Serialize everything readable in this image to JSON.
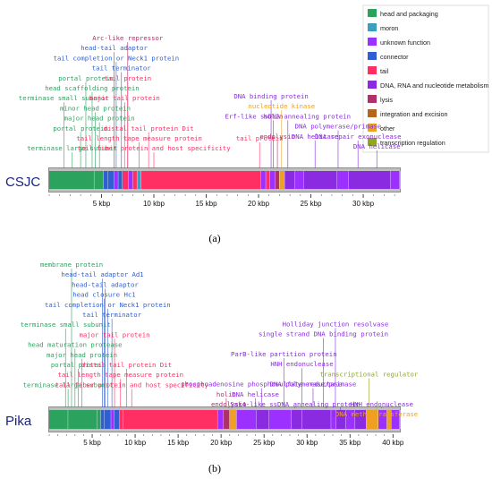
{
  "colors": {
    "head and packaging": "#2ca25f",
    "moron": "#3a9fbf",
    "unknown function": "#9b30ff",
    "connector": "#2f5fd0",
    "tail": "#ff2e63",
    "DNA, RNA and nucleotide metabolism": "#8a2be2",
    "lysis": "#b0306a",
    "integration and excision": "#b5651d",
    "other": "#f0a020",
    "transcription regulation": "#8fa820"
  },
  "legend": [
    {
      "label": "head and packaging",
      "category": "head and packaging"
    },
    {
      "label": "moron",
      "category": "moron"
    },
    {
      "label": "unknown function",
      "category": "unknown function"
    },
    {
      "label": "connector",
      "category": "connector"
    },
    {
      "label": "tail",
      "category": "tail"
    },
    {
      "label": "DNA, RNA and nucleotide metabolism",
      "category": "DNA, RNA and nucleotide metabolism"
    },
    {
      "label": "lysis",
      "category": "lysis"
    },
    {
      "label": "integration and excision",
      "category": "integration and excision"
    },
    {
      "label": "other",
      "category": "other"
    },
    {
      "label": "transcription regulation",
      "category": "transcription regulation"
    }
  ],
  "panels": [
    {
      "genome": "CSJC",
      "name_color": "#1a237e",
      "panel_label": "(a)",
      "ticks": [
        "5 kbp",
        "10 kbp",
        "15 kbp",
        "20 kbp",
        "25 kbp",
        "30 kbp"
      ],
      "tick_positions_kbp": [
        5,
        10,
        15,
        20,
        25,
        30
      ],
      "length_kbp": 33.5,
      "genes": [
        {
          "start": 0,
          "end": 4.3,
          "category": "head and packaging"
        },
        {
          "start": 4.3,
          "end": 5.2,
          "category": "head and packaging"
        },
        {
          "start": 5.2,
          "end": 5.6,
          "category": "connector"
        },
        {
          "start": 5.6,
          "end": 6.2,
          "category": "connector"
        },
        {
          "start": 6.2,
          "end": 6.6,
          "category": "unknown function"
        },
        {
          "start": 6.6,
          "end": 7.0,
          "category": "connector"
        },
        {
          "start": 7.0,
          "end": 7.6,
          "category": "tail"
        },
        {
          "start": 7.6,
          "end": 8.0,
          "category": "unknown function"
        },
        {
          "start": 8.0,
          "end": 8.4,
          "category": "tail"
        },
        {
          "start": 8.4,
          "end": 8.8,
          "category": "moron"
        },
        {
          "start": 8.8,
          "end": 20.2,
          "category": "tail"
        },
        {
          "start": 20.2,
          "end": 20.7,
          "category": "unknown function"
        },
        {
          "start": 20.7,
          "end": 21.1,
          "category": "tail"
        },
        {
          "start": 21.1,
          "end": 21.6,
          "category": "unknown function"
        },
        {
          "start": 21.6,
          "end": 22.0,
          "category": "lysis"
        },
        {
          "start": 22.0,
          "end": 22.5,
          "category": "other"
        },
        {
          "start": 22.5,
          "end": 23.5,
          "category": "DNA, RNA and nucleotide metabolism"
        },
        {
          "start": 23.5,
          "end": 24.3,
          "category": "unknown function"
        },
        {
          "start": 24.3,
          "end": 27.5,
          "category": "DNA, RNA and nucleotide metabolism"
        },
        {
          "start": 27.5,
          "end": 28.6,
          "category": "unknown function"
        },
        {
          "start": 28.6,
          "end": 32.6,
          "category": "DNA, RNA and nucleotide metabolism"
        },
        {
          "start": 32.6,
          "end": 33.5,
          "category": "unknown function"
        }
      ],
      "labels": [
        {
          "text": "Arc-like repressor",
          "pos": 7.5,
          "level": 1,
          "category": "lysis"
        },
        {
          "text": "head-tail adaptor",
          "pos": 6.2,
          "level": 2,
          "category": "connector"
        },
        {
          "text": "tail completion or Neck1 protein",
          "pos": 6.4,
          "level": 3,
          "category": "connector"
        },
        {
          "text": "tail terminator",
          "pos": 6.9,
          "level": 4,
          "category": "connector"
        },
        {
          "text": "portal protein",
          "pos": 3.5,
          "level": 5,
          "category": "head and packaging"
        },
        {
          "text": "tail protein",
          "pos": 7.5,
          "level": 5,
          "category": "tail"
        },
        {
          "text": "head scaffolding protein",
          "pos": 4.1,
          "level": 6,
          "category": "head and packaging"
        },
        {
          "text": "terminase small subunit",
          "pos": 1.4,
          "level": 7,
          "category": "head and packaging"
        },
        {
          "text": "major tail protein",
          "pos": 7.2,
          "level": 7,
          "category": "tail"
        },
        {
          "text": "minor head protein",
          "pos": 4.4,
          "level": 8,
          "category": "head and packaging"
        },
        {
          "text": "major head protein",
          "pos": 4.8,
          "level": 9,
          "category": "head and packaging"
        },
        {
          "text": "portal protein",
          "pos": 3.0,
          "level": 10,
          "category": "head and packaging"
        },
        {
          "text": "distal tail protein Dit",
          "pos": 9.5,
          "level": 10,
          "category": "tail"
        },
        {
          "text": "tail length tape measure protein",
          "pos": 8.6,
          "level": 11,
          "category": "tail"
        },
        {
          "text": "tail protein",
          "pos": 20.1,
          "level": 11,
          "category": "tail"
        },
        {
          "text": "terminase large subunit",
          "pos": 2.2,
          "level": 12,
          "category": "head and packaging"
        },
        {
          "text": "tail fiber protein and host specificity",
          "pos": 10.0,
          "level": 12,
          "category": "tail"
        },
        {
          "text": "DNA binding protein",
          "pos": 21.2,
          "level": 1,
          "category": "DNA, RNA and nucleotide metabolism",
          "group": "right"
        },
        {
          "text": "nucleotide kinase",
          "pos": 22.2,
          "level": 2,
          "category": "other",
          "group": "right"
        },
        {
          "text": "holin",
          "pos": 21.4,
          "level": 3,
          "category": "lysis",
          "group": "right"
        },
        {
          "text": "Erf-like ssDNA annealing protein",
          "pos": 22.8,
          "level": 3,
          "category": "DNA, RNA and nucleotide metabolism",
          "group": "right"
        },
        {
          "text": "DNA polymerase/primase",
          "pos": 27.6,
          "level": 4,
          "category": "DNA, RNA and nucleotide metabolism",
          "group": "right"
        },
        {
          "text": "endolysin",
          "pos": 21.8,
          "level": 5,
          "category": "lysis",
          "group": "right"
        },
        {
          "text": "DNA helicase",
          "pos": 25.4,
          "level": 5,
          "category": "DNA, RNA and nucleotide metabolism",
          "group": "right"
        },
        {
          "text": "DNA repair exonuclease",
          "pos": 29.5,
          "level": 5,
          "category": "DNA, RNA and nucleotide metabolism",
          "group": "right"
        },
        {
          "text": "DNA helicase",
          "pos": 31.3,
          "level": 6,
          "category": "DNA, RNA and nucleotide metabolism",
          "group": "right"
        }
      ]
    },
    {
      "genome": "Pika",
      "name_color": "#1a237e",
      "panel_label": "(b)",
      "ticks": [
        "5 kbp",
        "10 kbp",
        "15 kbp",
        "20 kbp",
        "25 kbp",
        "30 kbp",
        "35 kbp",
        "40 kbp"
      ],
      "tick_positions_kbp": [
        5,
        10,
        15,
        20,
        25,
        30,
        35,
        40
      ],
      "length_kbp": 40.8,
      "genes": [
        {
          "start": 0,
          "end": 2.2,
          "category": "head and packaging"
        },
        {
          "start": 2.2,
          "end": 5.6,
          "category": "head and packaging"
        },
        {
          "start": 5.6,
          "end": 6.0,
          "category": "head and packaging"
        },
        {
          "start": 6.0,
          "end": 6.4,
          "category": "connector"
        },
        {
          "start": 6.4,
          "end": 7.2,
          "category": "connector"
        },
        {
          "start": 7.2,
          "end": 7.6,
          "category": "unknown function"
        },
        {
          "start": 7.6,
          "end": 8.2,
          "category": "connector"
        },
        {
          "start": 8.2,
          "end": 8.6,
          "category": "tail"
        },
        {
          "start": 8.6,
          "end": 19.6,
          "category": "tail"
        },
        {
          "start": 19.6,
          "end": 20.3,
          "category": "unknown function"
        },
        {
          "start": 20.3,
          "end": 21.0,
          "category": "lysis"
        },
        {
          "start": 21.0,
          "end": 21.8,
          "category": "other"
        },
        {
          "start": 21.8,
          "end": 24.1,
          "category": "unknown function"
        },
        {
          "start": 24.1,
          "end": 25.6,
          "category": "DNA, RNA and nucleotide metabolism"
        },
        {
          "start": 25.6,
          "end": 28.2,
          "category": "unknown function"
        },
        {
          "start": 28.2,
          "end": 29.4,
          "category": "DNA, RNA and nucleotide metabolism"
        },
        {
          "start": 29.4,
          "end": 32.8,
          "category": "DNA, RNA and nucleotide metabolism"
        },
        {
          "start": 32.8,
          "end": 33.4,
          "category": "unknown function"
        },
        {
          "start": 33.4,
          "end": 34.5,
          "category": "DNA, RNA and nucleotide metabolism"
        },
        {
          "start": 34.5,
          "end": 35.6,
          "category": "unknown function"
        },
        {
          "start": 35.6,
          "end": 36.9,
          "category": "DNA, RNA and nucleotide metabolism"
        },
        {
          "start": 36.9,
          "end": 38.3,
          "category": "other"
        },
        {
          "start": 38.3,
          "end": 39.3,
          "category": "unknown function"
        },
        {
          "start": 39.3,
          "end": 39.8,
          "category": "other"
        },
        {
          "start": 39.8,
          "end": 40.8,
          "category": "unknown function"
        }
      ],
      "labels": [
        {
          "text": "membrane protein",
          "pos": 2.6,
          "level": 1,
          "category": "head and packaging"
        },
        {
          "text": "head-tail adaptor Ad1",
          "pos": 6.2,
          "level": 2,
          "category": "connector"
        },
        {
          "text": "head-tail adaptor",
          "pos": 6.5,
          "level": 3,
          "category": "connector"
        },
        {
          "text": "head closure Hc1",
          "pos": 6.4,
          "level": 4,
          "category": "connector"
        },
        {
          "text": "tail completion or Neck1 protein",
          "pos": 6.8,
          "level": 5,
          "category": "connector"
        },
        {
          "text": "tail terminator",
          "pos": 7.3,
          "level": 6,
          "category": "connector"
        },
        {
          "text": "terminase small subunit",
          "pos": 1.9,
          "level": 7,
          "category": "head and packaging"
        },
        {
          "text": "major tail protein",
          "pos": 7.6,
          "level": 8,
          "category": "tail"
        },
        {
          "text": "head maturation protease",
          "pos": 3.0,
          "level": 9,
          "category": "head and packaging"
        },
        {
          "text": "major head protein",
          "pos": 3.8,
          "level": 10,
          "category": "head and packaging"
        },
        {
          "text": "portal protein",
          "pos": 3.4,
          "level": 11,
          "category": "head and packaging"
        },
        {
          "text": "distal tail protein Dit",
          "pos": 9.0,
          "level": 11,
          "category": "tail"
        },
        {
          "text": "tail length tape measure protein",
          "pos": 8.3,
          "level": 12,
          "category": "tail"
        },
        {
          "text": "terminase large subunit",
          "pos": 2.2,
          "level": 13,
          "category": "head and packaging"
        },
        {
          "text": "tail fiber protein and host specificity",
          "pos": 9.6,
          "level": 13,
          "category": "tail"
        },
        {
          "text": "Holliday junction resolvase",
          "pos": 33.3,
          "level": 3,
          "category": "DNA, RNA and nucleotide metabolism",
          "group": "right"
        },
        {
          "text": "single strand DNA binding protein",
          "pos": 31.9,
          "level": 4,
          "category": "DNA, RNA and nucleotide metabolism",
          "group": "right"
        },
        {
          "text": "ParB-like partition protein",
          "pos": 27.3,
          "level": 6,
          "category": "DNA, RNA and nucleotide metabolism",
          "group": "right"
        },
        {
          "text": "HNH endonuclease",
          "pos": 29.4,
          "level": 7,
          "category": "DNA, RNA and nucleotide metabolism",
          "group": "right"
        },
        {
          "text": "transcriptional regulator",
          "pos": 37.2,
          "level": 8,
          "category": "transcription regulation",
          "group": "right"
        },
        {
          "text": "phosphoadenosine phosphosulfate reductase",
          "pos": 24.7,
          "level": 9,
          "category": "DNA, RNA and nucleotide metabolism",
          "group": "right"
        },
        {
          "text": "DNA polymerase/primase",
          "pos": 30.7,
          "level": 9,
          "category": "DNA, RNA and nucleotide metabolism",
          "group": "right"
        },
        {
          "text": "holin",
          "pos": 20.6,
          "level": 10,
          "category": "lysis",
          "group": "right"
        },
        {
          "text": "DNA helicase",
          "pos": 24.0,
          "level": 10,
          "category": "DNA, RNA and nucleotide metabolism",
          "group": "right"
        },
        {
          "text": "endolysin",
          "pos": 20.9,
          "level": 11,
          "category": "lysis",
          "group": "right"
        },
        {
          "text": "Sak4-like ssDNA annealing protein",
          "pos": 28.6,
          "level": 11,
          "category": "DNA, RNA and nucleotide metabolism",
          "group": "right"
        },
        {
          "text": "HNH endonuclease",
          "pos": 38.7,
          "level": 11,
          "category": "DNA, RNA and nucleotide metabolism",
          "group": "right"
        },
        {
          "text": "DNA helicase",
          "pos": 33.9,
          "level": 12,
          "category": "DNA, RNA and nucleotide metabolism",
          "group": "right"
        },
        {
          "text": "DNA methyltransferase",
          "pos": 38.1,
          "level": 12,
          "category": "other",
          "group": "right"
        }
      ]
    }
  ]
}
